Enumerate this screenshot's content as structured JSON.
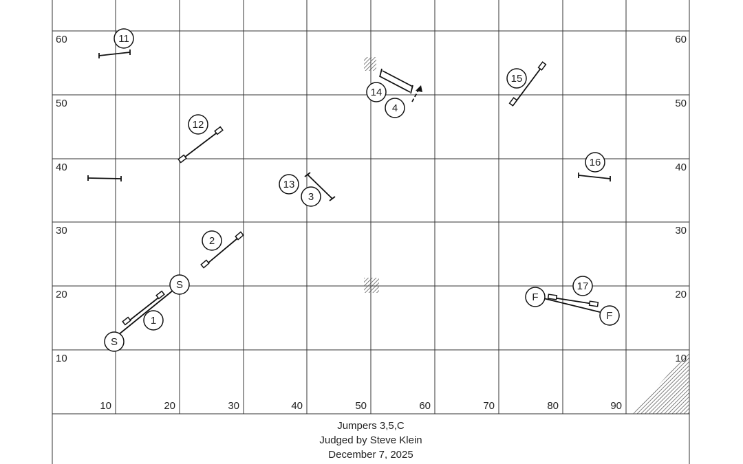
{
  "grid": {
    "left_labels": [
      60,
      50,
      40,
      30,
      20,
      10
    ],
    "right_labels": [
      60,
      50,
      40,
      30,
      20,
      10
    ],
    "bottom_labels": [
      10,
      20,
      30,
      40,
      50,
      60,
      70,
      80,
      90
    ]
  },
  "markers": [
    "11",
    "12",
    "13",
    "3",
    "14",
    "4",
    "15",
    "16",
    "2",
    "S",
    "S",
    "1",
    "17",
    "F",
    "F"
  ],
  "footer": {
    "lines": [
      "Jumpers 3,5,C",
      "Judged by Steve Klein",
      "December 7, 2025"
    ]
  }
}
